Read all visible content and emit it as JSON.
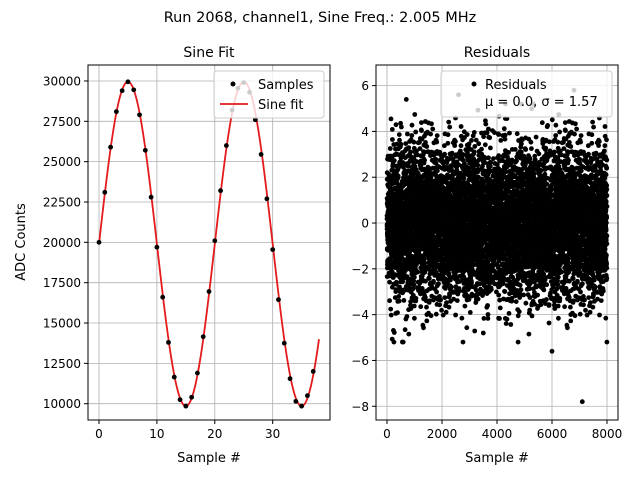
{
  "suptitle": "Run 2068, channel1, Sine Freq.: 2.005 MHz",
  "chart_data": [
    {
      "type": "scatter",
      "title": "Sine Fit",
      "xlabel": "Sample #",
      "ylabel": "ADC Counts",
      "xlim": [
        -1.9,
        39.9
      ],
      "ylim": [
        8990,
        30990
      ],
      "xticks": [
        0,
        10,
        20,
        30
      ],
      "yticks": [
        10000,
        12500,
        15000,
        17500,
        20000,
        22500,
        25000,
        27500,
        30000
      ],
      "grid": true,
      "legend": {
        "placement": "upper right",
        "entries": [
          "Samples",
          "Sine fit"
        ]
      },
      "series": [
        {
          "name": "Samples",
          "style": "points",
          "color": "#000000",
          "x": [
            0,
            1,
            2,
            3,
            4,
            5,
            6,
            7,
            8,
            9,
            10,
            11,
            12,
            13,
            14,
            15,
            16,
            17,
            18,
            19,
            20,
            21,
            22,
            23,
            24,
            25,
            26,
            27,
            28,
            29,
            30,
            31,
            32,
            33,
            34,
            35,
            36,
            37
          ],
          "y": [
            20000,
            23100,
            25900,
            28100,
            29400,
            29950,
            29450,
            27900,
            25700,
            22800,
            19700,
            16600,
            13800,
            11650,
            10250,
            9850,
            10400,
            11900,
            14150,
            16950,
            20100,
            23200,
            26000,
            28200,
            29550,
            29900,
            29300,
            27600,
            25450,
            22700,
            19550,
            16450,
            13750,
            11550,
            10150,
            9850,
            10500,
            12000
          ]
        },
        {
          "name": "Sine fit",
          "style": "line",
          "color": "#e41a1c",
          "fit": {
            "offset": 19900,
            "amplitude": 10050,
            "period": 20.0,
            "phase": 0,
            "x_range": [
              0,
              38
            ]
          }
        }
      ]
    },
    {
      "type": "scatter",
      "title": "Residuals",
      "xlabel": "Sample #",
      "ylabel": "",
      "xlim": [
        -400,
        8400
      ],
      "ylim": [
        -8.6,
        6.9
      ],
      "xticks": [
        0,
        2000,
        4000,
        6000,
        8000
      ],
      "yticks": [
        -8,
        -6,
        -4,
        -2,
        0,
        2,
        4,
        6
      ],
      "grid": true,
      "legend": {
        "placement": "upper right",
        "entries": [
          "Residuals",
          "μ = 0.0, σ = 1.57"
        ]
      },
      "series": [
        {
          "name": "Residuals",
          "color": "#000000",
          "n_points": 8000,
          "mean": 0.0,
          "std": 1.57,
          "extremes": [
            [
              6800,
              5.8
            ],
            [
              2600,
              5.6
            ],
            [
              700,
              5.4
            ],
            [
              7100,
              -7.8
            ],
            [
              6000,
              -5.6
            ],
            [
              3500,
              -4.8
            ]
          ]
        }
      ]
    }
  ],
  "colors": {
    "marker": "#000000",
    "fit_line": "#e41a1c",
    "grid": "#b0b0b0",
    "legend_border": "#cccccc"
  }
}
